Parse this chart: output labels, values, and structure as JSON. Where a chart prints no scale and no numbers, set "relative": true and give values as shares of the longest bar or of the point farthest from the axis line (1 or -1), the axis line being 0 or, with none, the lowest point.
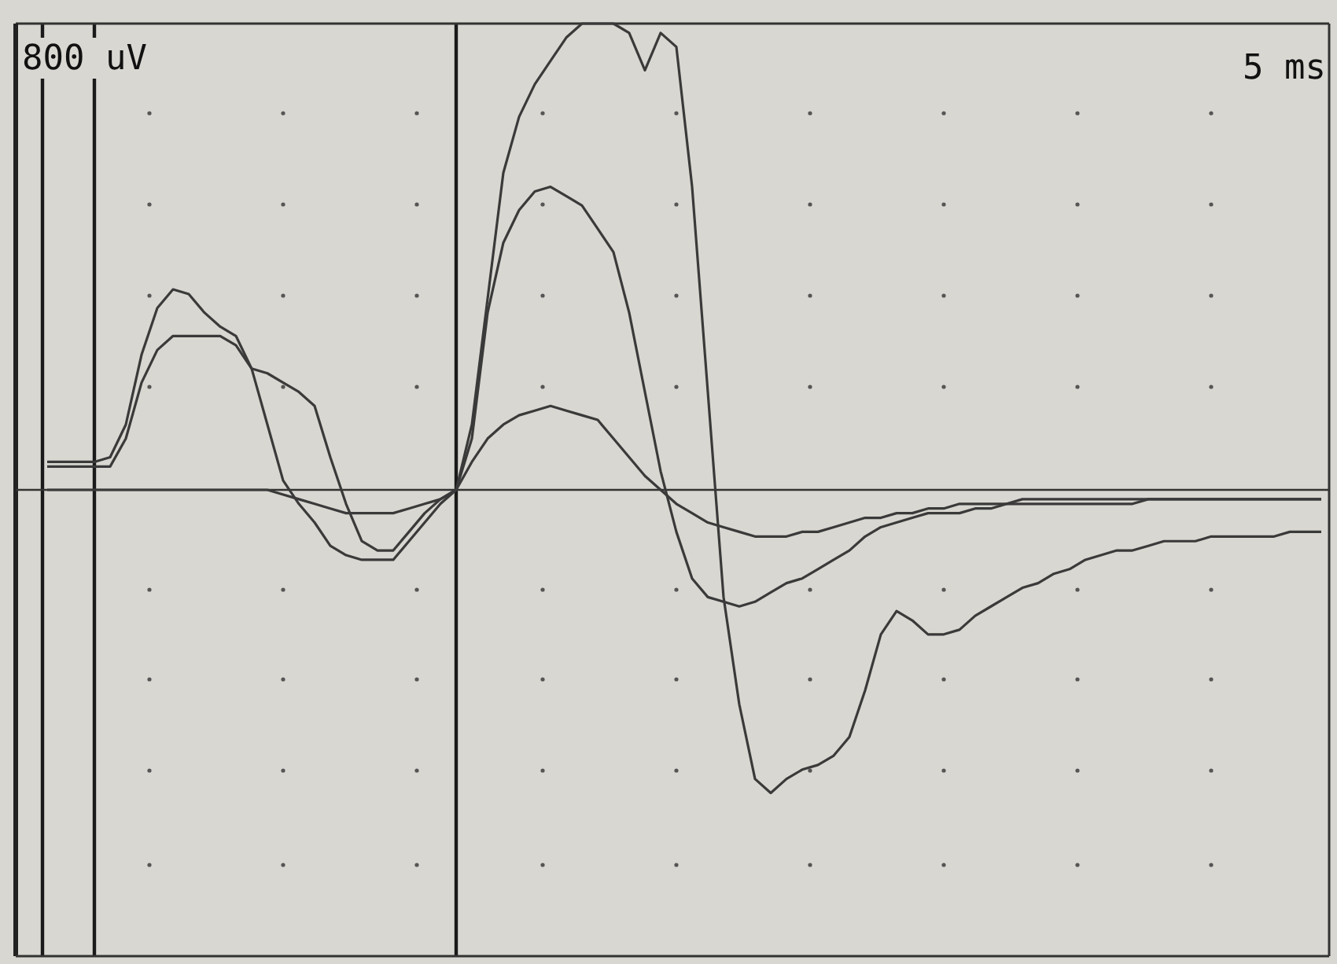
{
  "chart_data": {
    "type": "line",
    "relative": true,
    "marker": "none",
    "line_style": "solid",
    "annotations": [
      "800 uV",
      "5 ms"
    ],
    "categories": [
      null,
      null,
      null,
      null,
      null,
      null,
      null,
      null,
      null,
      null,
      null,
      null,
      null,
      null,
      null,
      null,
      null,
      null,
      null,
      null,
      null,
      null,
      null,
      null,
      null,
      null,
      null,
      null,
      null,
      null,
      null,
      null,
      null,
      null,
      null,
      null,
      null,
      null,
      null,
      null,
      null,
      null,
      null,
      null,
      null,
      null,
      null,
      null,
      null,
      null,
      null,
      null,
      null,
      null,
      null,
      null,
      null,
      null,
      null,
      null,
      null,
      null,
      null,
      null,
      null,
      null,
      null,
      null,
      null,
      null,
      null,
      null,
      null,
      null,
      null,
      null,
      null,
      null,
      null,
      null,
      null,
      null,
      null
    ],
    "series": [
      {
        "color": "#3a3a3a",
        "values": [
          null,
          0.06,
          0.06,
          0.06,
          0.06,
          0.07,
          0.14,
          0.29,
          0.39,
          0.43,
          0.42,
          0.38,
          0.35,
          0.33,
          0.26,
          0.14,
          0.02,
          -0.03,
          -0.07,
          -0.12,
          -0.14,
          -0.15,
          -0.15,
          -0.15,
          -0.11,
          -0.07,
          -0.03,
          0,
          0.14,
          0.41,
          0.68,
          0.8,
          0.87,
          0.92,
          0.97,
          1,
          1,
          1,
          0.98,
          0.9,
          0.98,
          0.95,
          0.65,
          0.21,
          -0.23,
          -0.46,
          -0.62,
          -0.65,
          -0.62,
          -0.6,
          -0.59,
          -0.57,
          -0.53,
          -0.43,
          -0.31,
          -0.26,
          -0.28,
          -0.31,
          -0.31,
          -0.3,
          -0.27,
          -0.25,
          -0.23,
          -0.21,
          -0.2,
          -0.18,
          -0.17,
          -0.15,
          -0.14,
          -0.13,
          -0.13,
          -0.12,
          -0.11,
          -0.11,
          -0.11,
          -0.1,
          -0.1,
          -0.1,
          -0.1,
          -0.1,
          -0.09,
          -0.09,
          -0.09
        ]
      },
      {
        "color": "#3a3a3a",
        "values": [
          null,
          0.05,
          0.05,
          0.05,
          0.05,
          0.05,
          0.11,
          0.23,
          0.3,
          0.33,
          0.33,
          0.33,
          0.33,
          0.31,
          0.26,
          0.25,
          0.23,
          0.21,
          0.18,
          0.07,
          -0.03,
          -0.11,
          -0.13,
          -0.13,
          -0.09,
          -0.05,
          -0.02,
          0,
          0.11,
          0.38,
          0.53,
          0.6,
          0.64,
          0.65,
          0.63,
          0.61,
          0.56,
          0.51,
          0.38,
          0.21,
          0.04,
          -0.09,
          -0.19,
          -0.23,
          -0.24,
          -0.25,
          -0.24,
          -0.22,
          -0.2,
          -0.19,
          -0.17,
          -0.15,
          -0.13,
          -0.1,
          -0.08,
          -0.07,
          -0.06,
          -0.05,
          -0.05,
          -0.05,
          -0.04,
          -0.04,
          -0.03,
          -0.03,
          -0.03,
          -0.03,
          -0.03,
          -0.03,
          -0.03,
          -0.03,
          -0.03,
          -0.02,
          -0.02,
          -0.02,
          -0.02,
          -0.02,
          -0.02,
          -0.02,
          -0.02,
          -0.02,
          -0.02,
          -0.02,
          -0.02
        ]
      },
      {
        "color": "#3a3a3a",
        "values": [
          null,
          0,
          0,
          0,
          0,
          0,
          0,
          0,
          0,
          0,
          0,
          0,
          0,
          0,
          0,
          0,
          -0.01,
          -0.02,
          -0.03,
          -0.04,
          -0.05,
          -0.05,
          -0.05,
          -0.05,
          -0.04,
          -0.03,
          -0.02,
          0,
          0.06,
          0.11,
          0.14,
          0.16,
          0.17,
          0.18,
          0.17,
          0.16,
          0.15,
          0.11,
          0.07,
          0.03,
          0,
          -0.03,
          -0.05,
          -0.07,
          -0.08,
          -0.09,
          -0.1,
          -0.1,
          -0.1,
          -0.09,
          -0.09,
          -0.08,
          -0.07,
          -0.06,
          -0.06,
          -0.05,
          -0.05,
          -0.04,
          -0.04,
          -0.03,
          -0.03,
          -0.03,
          -0.03,
          -0.02,
          -0.02,
          -0.02,
          -0.02,
          -0.02,
          -0.02,
          -0.02,
          -0.02,
          -0.02,
          -0.02,
          -0.02,
          -0.02,
          -0.02,
          -0.02,
          -0.02,
          -0.02,
          -0.02,
          -0.02,
          -0.02,
          -0.02
        ]
      }
    ]
  }
}
